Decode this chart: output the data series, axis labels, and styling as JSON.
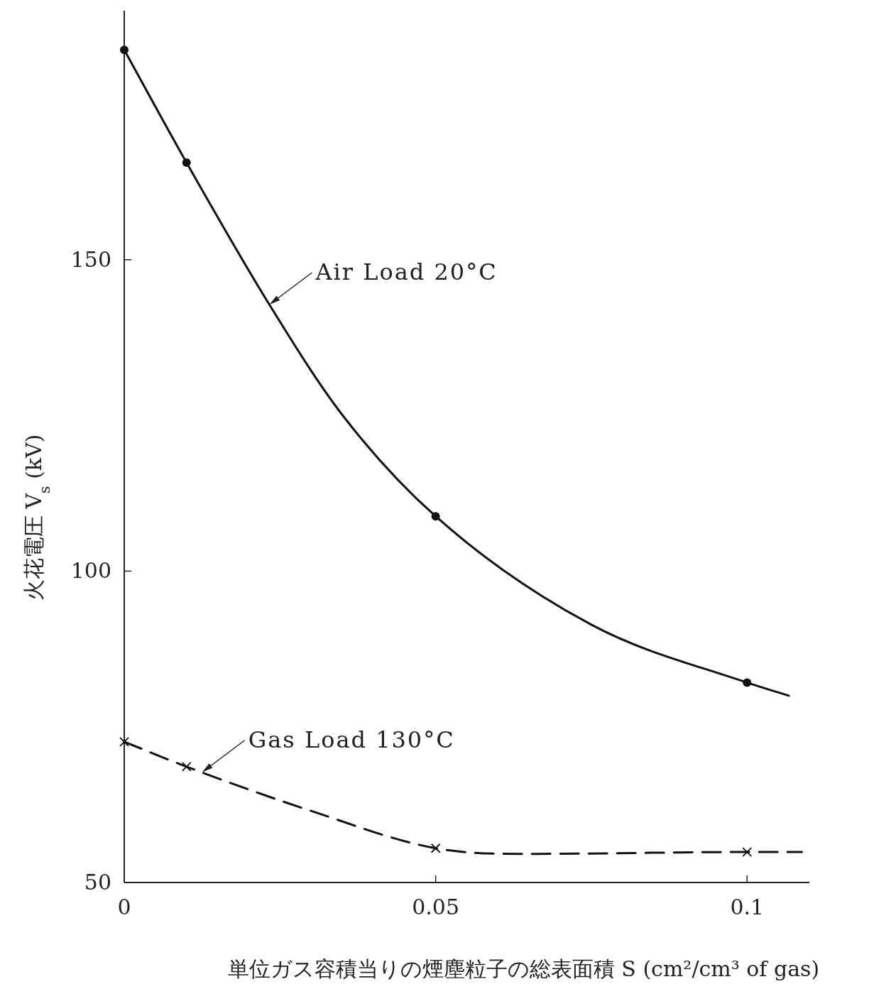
{
  "chart_data": {
    "type": "line",
    "xlabel": "単位ガス容積当りの煙塵粒子の総表面積 S (cm²/cm³ of gas)",
    "ylabel": "火花電圧 V$_{s}$ (kV)",
    "xlim": [
      0,
      0.11
    ],
    "ylim": [
      50,
      190
    ],
    "xticks": [
      0,
      0.05,
      0.1
    ],
    "yticks": [
      50,
      100,
      150
    ],
    "grid": false,
    "series": [
      {
        "color": "#111111",
        "line_style": "solid",
        "marker": "none",
        "x": [
          0,
          0.01,
          0.0233,
          0.035,
          0.05,
          0.075,
          0.1,
          0.1067
        ],
        "values": [
          183.7,
          165.6,
          142.8,
          125.1,
          108.8,
          91.4,
          82.1,
          80.0
        ]
      },
      {
        "type": "scatter",
        "color": "#111111",
        "marker": "circle",
        "x": [
          0,
          0.01,
          0.05,
          0.1
        ],
        "values": [
          183.7,
          165.6,
          108.8,
          82.1
        ]
      },
      {
        "color": "#111111",
        "line_style": "dashed",
        "marker": "none",
        "x": [
          0,
          0.01,
          0.03,
          0.05,
          0.065,
          0.1,
          0.1088
        ],
        "values": [
          72.6,
          68.6,
          61.5,
          55.5,
          54.6,
          54.9,
          54.9
        ]
      },
      {
        "type": "scatter",
        "color": "#111111",
        "marker": "cross",
        "x": [
          0,
          0.01,
          0.05,
          0.1
        ],
        "values": [
          72.6,
          68.6,
          55.5,
          54.9
        ]
      }
    ],
    "annotations": [
      {
        "text": "Air Load 20°C",
        "x": 0.0233,
        "y": 142.8
      },
      {
        "text": "Gas Load 130°C",
        "x": 0.0125,
        "y": 67.7
      }
    ]
  }
}
